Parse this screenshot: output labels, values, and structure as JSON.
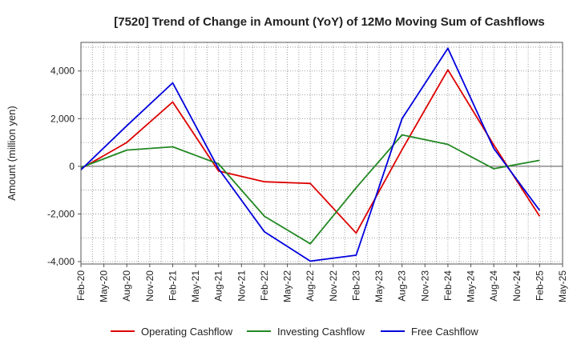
{
  "chart_data": {
    "type": "line",
    "title": "[7520]  Trend of Change in Amount (YoY) of 12Mo Moving Sum of Cashflows",
    "xlabel": "",
    "ylabel": "Amount (million yen)",
    "ylim": [
      -4100,
      5200
    ],
    "yticks": [
      -4000,
      -2000,
      0,
      2000,
      4000
    ],
    "ytick_labels": [
      "-4,000",
      "-2,000",
      "0",
      "2,000",
      "4,000"
    ],
    "x_tick_labels": [
      "Feb-20",
      "May-20",
      "Aug-20",
      "Nov-20",
      "Feb-21",
      "May-21",
      "Aug-21",
      "Nov-21",
      "Feb-22",
      "May-22",
      "Aug-22",
      "Nov-22",
      "Feb-23",
      "May-23",
      "Aug-23",
      "Nov-23",
      "Feb-24",
      "May-24",
      "Aug-24",
      "Nov-24",
      "Feb-25",
      "May-25"
    ],
    "grid": true,
    "legend_position": "bottom",
    "series": [
      {
        "name": "Operating Cashflow",
        "color": "#dd0000",
        "points": [
          [
            0,
            -100
          ],
          [
            2,
            1000
          ],
          [
            4,
            2700
          ],
          [
            6,
            -200
          ],
          [
            8,
            -650
          ],
          [
            10,
            -720
          ],
          [
            12,
            -2800
          ],
          [
            14,
            700
          ],
          [
            16,
            4050
          ],
          [
            18,
            900
          ],
          [
            20,
            -2100
          ]
        ]
      },
      {
        "name": "Investing Cashflow",
        "color": "#228822",
        "points": [
          [
            0,
            -50
          ],
          [
            2,
            680
          ],
          [
            4,
            820
          ],
          [
            6,
            100
          ],
          [
            8,
            -2100
          ],
          [
            10,
            -3250
          ],
          [
            12,
            -900
          ],
          [
            14,
            1320
          ],
          [
            16,
            920
          ],
          [
            18,
            -100
          ],
          [
            20,
            250
          ]
        ]
      },
      {
        "name": "Free Cashflow",
        "color": "#0000dd",
        "points": [
          [
            0,
            -150
          ],
          [
            2,
            1700
          ],
          [
            4,
            3500
          ],
          [
            6,
            -100
          ],
          [
            8,
            -2750
          ],
          [
            10,
            -3980
          ],
          [
            12,
            -3730
          ],
          [
            14,
            2000
          ],
          [
            16,
            4950
          ],
          [
            18,
            750
          ],
          [
            20,
            -1850
          ]
        ]
      }
    ]
  }
}
